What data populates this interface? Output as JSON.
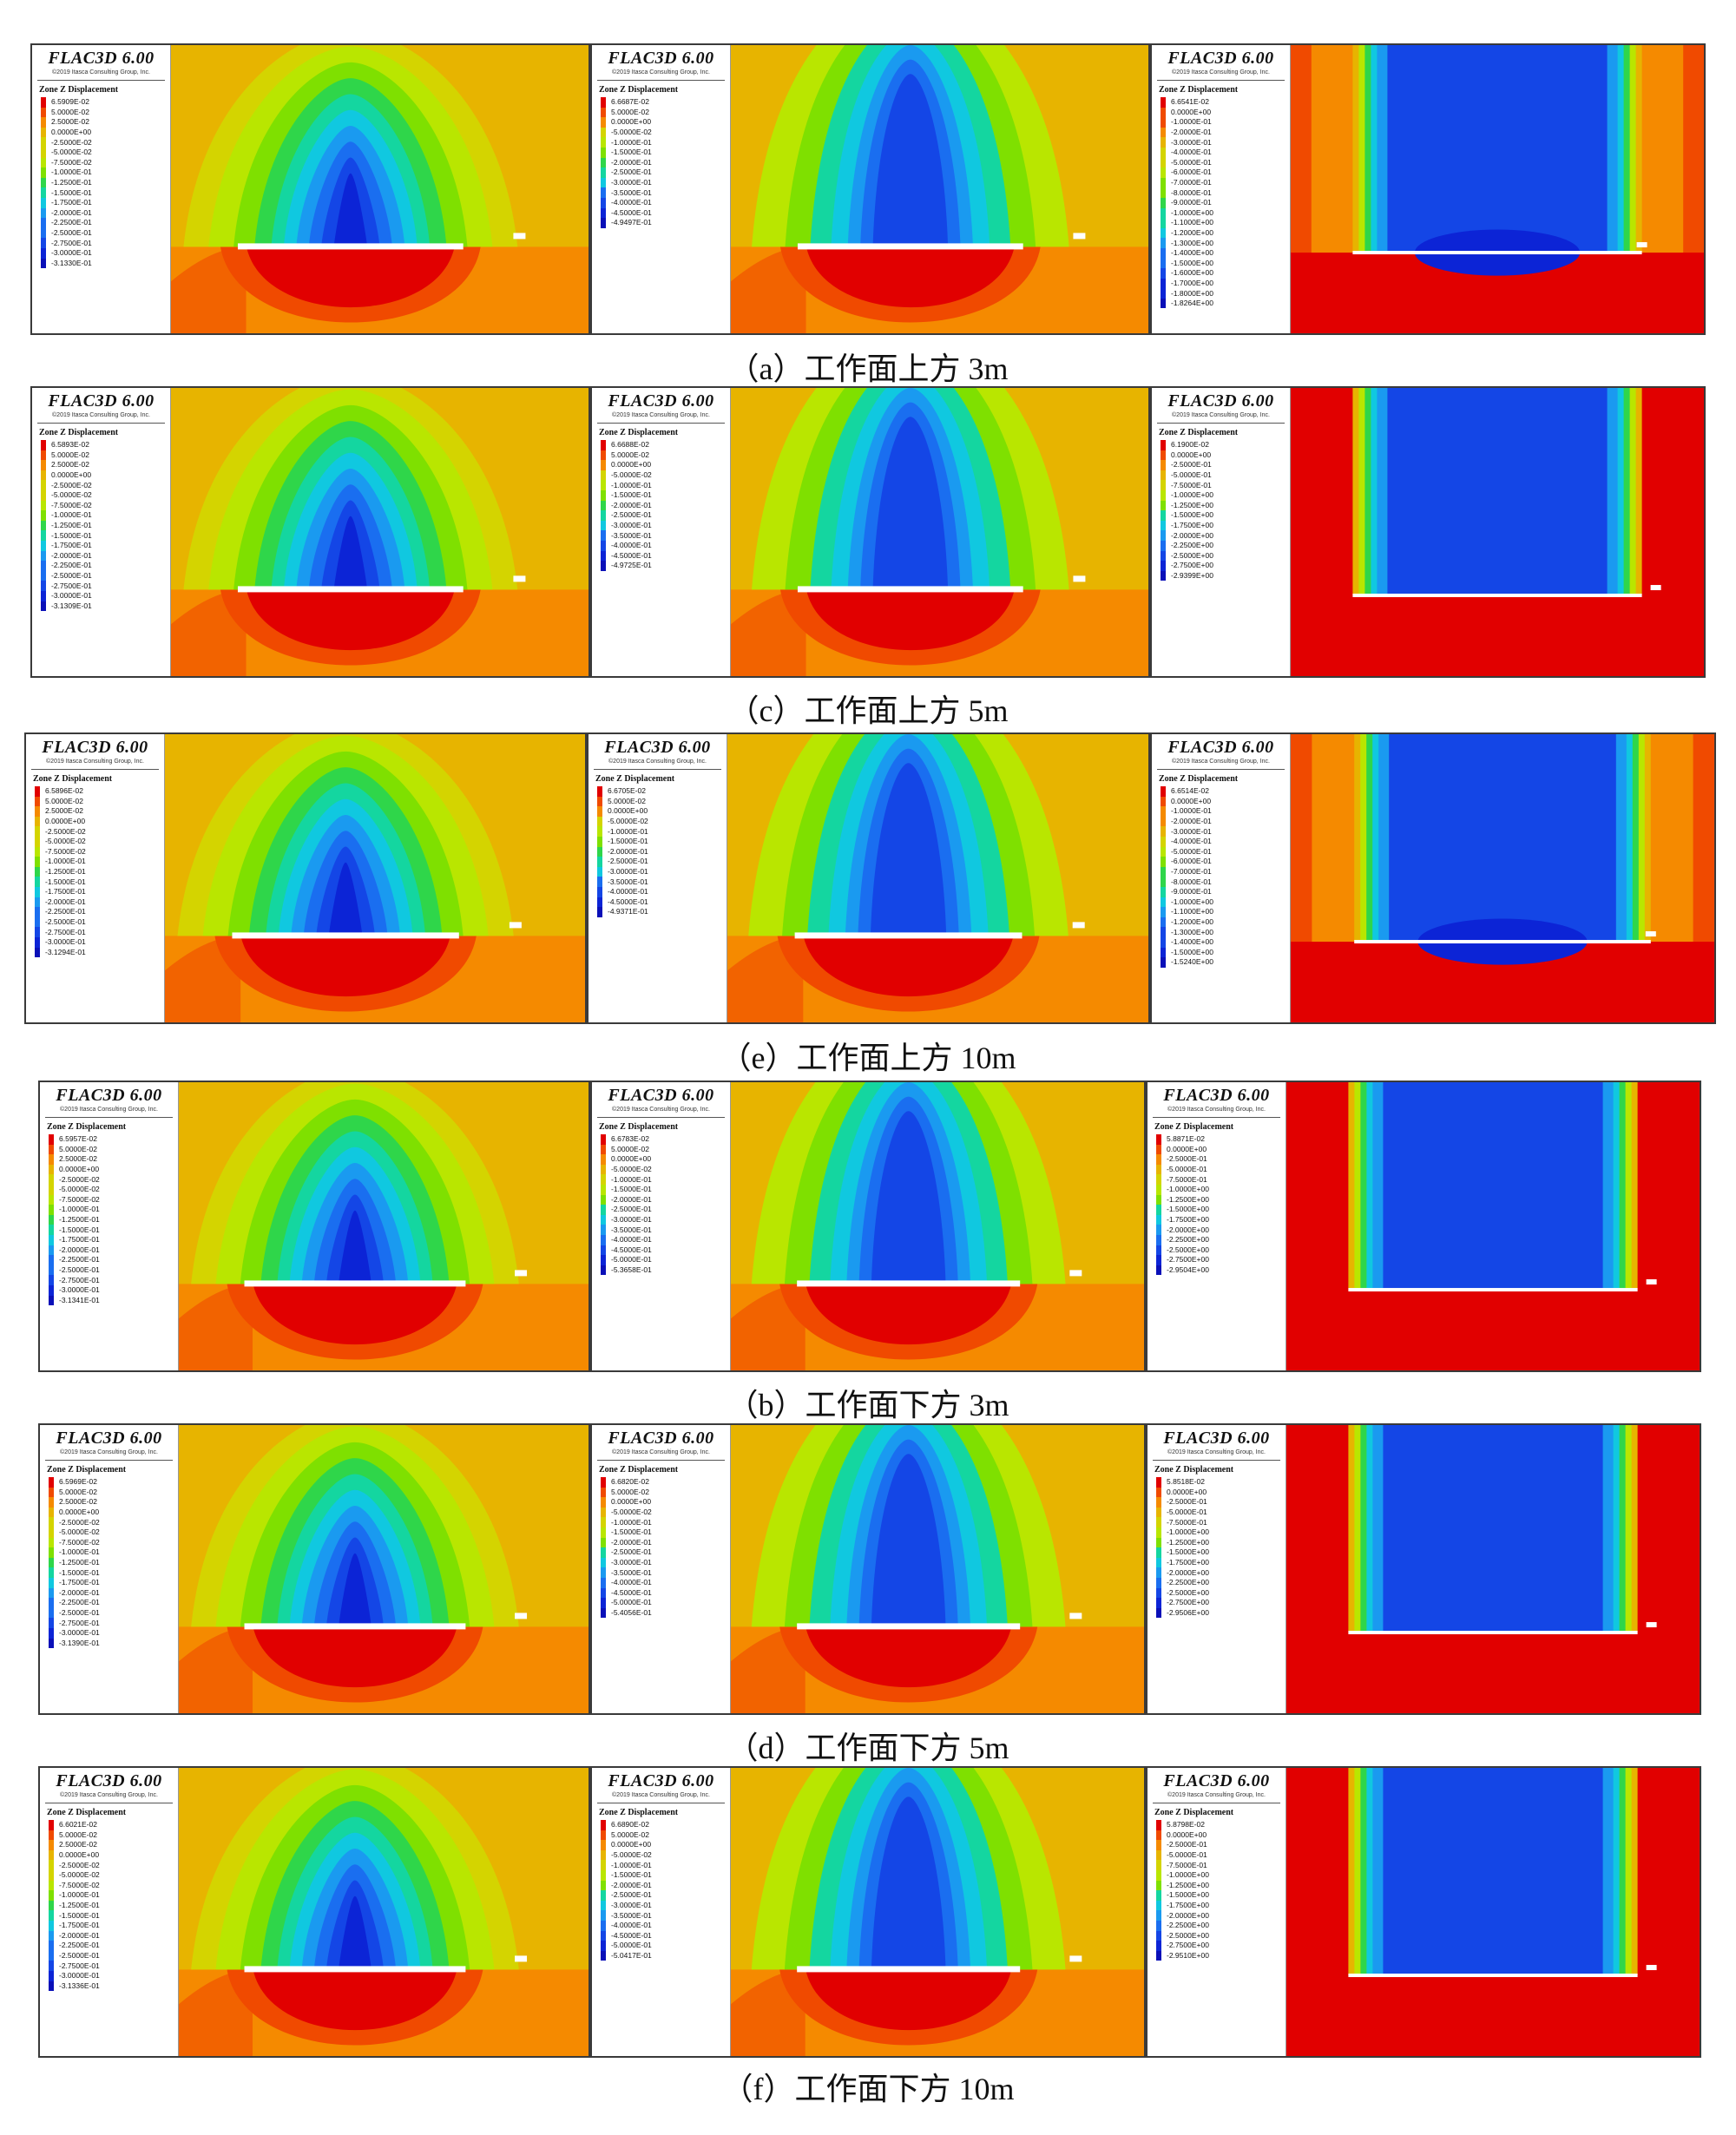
{
  "software": {
    "logo": "FLAC3D 6.00",
    "copyright": "©2019 Itasca Consulting Group, Inc."
  },
  "legend_title": "Zone Z Displacement",
  "rows": [
    {
      "caption": "（a）工作面上方 3m",
      "panels": [
        {
          "pattern": "arch",
          "legend": [
            "6.5909E-02",
            "5.0000E-02",
            "2.5000E-02",
            "0.0000E+00",
            "-2.5000E-02",
            "-5.0000E-02",
            "-7.5000E-02",
            "-1.0000E-01",
            "-1.2500E-01",
            "-1.5000E-01",
            "-1.7500E-01",
            "-2.0000E-01",
            "-2.2500E-01",
            "-2.5000E-01",
            "-2.7500E-01",
            "-3.0000E-01",
            "-3.1330E-01"
          ]
        },
        {
          "pattern": "arch-deep",
          "legend": [
            "6.6687E-02",
            "5.0000E-02",
            "0.0000E+00",
            "-5.0000E-02",
            "-1.0000E-01",
            "-1.5000E-01",
            "-2.0000E-01",
            "-2.5000E-01",
            "-3.0000E-01",
            "-3.5000E-01",
            "-4.0000E-01",
            "-4.5000E-01",
            "-4.9497E-01"
          ]
        },
        {
          "pattern": "column-above",
          "legend": [
            "6.6541E-02",
            "0.0000E+00",
            "-1.0000E-01",
            "-2.0000E-01",
            "-3.0000E-01",
            "-4.0000E-01",
            "-5.0000E-01",
            "-6.0000E-01",
            "-7.0000E-01",
            "-8.0000E-01",
            "-9.0000E-01",
            "-1.0000E+00",
            "-1.1000E+00",
            "-1.2000E+00",
            "-1.3000E+00",
            "-1.4000E+00",
            "-1.5000E+00",
            "-1.6000E+00",
            "-1.7000E+00",
            "-1.8000E+00",
            "-1.8264E+00"
          ]
        }
      ]
    },
    {
      "caption": "（c）工作面上方 5m",
      "panels": [
        {
          "pattern": "arch",
          "legend": [
            "6.5893E-02",
            "5.0000E-02",
            "2.5000E-02",
            "0.0000E+00",
            "-2.5000E-02",
            "-5.0000E-02",
            "-7.5000E-02",
            "-1.0000E-01",
            "-1.2500E-01",
            "-1.5000E-01",
            "-1.7500E-01",
            "-2.0000E-01",
            "-2.2500E-01",
            "-2.5000E-01",
            "-2.7500E-01",
            "-3.0000E-01",
            "-3.1309E-01"
          ]
        },
        {
          "pattern": "arch-deep",
          "legend": [
            "6.6688E-02",
            "5.0000E-02",
            "0.0000E+00",
            "-5.0000E-02",
            "-1.0000E-01",
            "-1.5000E-01",
            "-2.0000E-01",
            "-2.5000E-01",
            "-3.0000E-01",
            "-3.5000E-01",
            "-4.0000E-01",
            "-4.5000E-01",
            "-4.9725E-01"
          ]
        },
        {
          "pattern": "column-red",
          "legend": [
            "6.1900E-02",
            "0.0000E+00",
            "-2.5000E-01",
            "-5.0000E-01",
            "-7.5000E-01",
            "-1.0000E+00",
            "-1.2500E+00",
            "-1.5000E+00",
            "-1.7500E+00",
            "-2.0000E+00",
            "-2.2500E+00",
            "-2.5000E+00",
            "-2.7500E+00",
            "-2.9399E+00"
          ]
        }
      ]
    },
    {
      "caption": "（e）工作面上方 10m",
      "panels": [
        {
          "pattern": "arch",
          "legend": [
            "6.5896E-02",
            "5.0000E-02",
            "2.5000E-02",
            "0.0000E+00",
            "-2.5000E-02",
            "-5.0000E-02",
            "-7.5000E-02",
            "-1.0000E-01",
            "-1.2500E-01",
            "-1.5000E-01",
            "-1.7500E-01",
            "-2.0000E-01",
            "-2.2500E-01",
            "-2.5000E-01",
            "-2.7500E-01",
            "-3.0000E-01",
            "-3.1294E-01"
          ]
        },
        {
          "pattern": "arch-deep",
          "legend": [
            "6.6705E-02",
            "5.0000E-02",
            "0.0000E+00",
            "-5.0000E-02",
            "-1.0000E-01",
            "-1.5000E-01",
            "-2.0000E-01",
            "-2.5000E-01",
            "-3.0000E-01",
            "-3.5000E-01",
            "-4.0000E-01",
            "-4.5000E-01",
            "-4.9371E-01"
          ]
        },
        {
          "pattern": "column-above",
          "legend": [
            "6.6514E-02",
            "0.0000E+00",
            "-1.0000E-01",
            "-2.0000E-01",
            "-3.0000E-01",
            "-4.0000E-01",
            "-5.0000E-01",
            "-6.0000E-01",
            "-7.0000E-01",
            "-8.0000E-01",
            "-9.0000E-01",
            "-1.0000E+00",
            "-1.1000E+00",
            "-1.2000E+00",
            "-1.3000E+00",
            "-1.4000E+00",
            "-1.5000E+00",
            "-1.5240E+00"
          ]
        }
      ]
    },
    {
      "caption": "（b）工作面下方 3m",
      "panels": [
        {
          "pattern": "arch",
          "legend": [
            "6.5957E-02",
            "5.0000E-02",
            "2.5000E-02",
            "0.0000E+00",
            "-2.5000E-02",
            "-5.0000E-02",
            "-7.5000E-02",
            "-1.0000E-01",
            "-1.2500E-01",
            "-1.5000E-01",
            "-1.7500E-01",
            "-2.0000E-01",
            "-2.2500E-01",
            "-2.5000E-01",
            "-2.7500E-01",
            "-3.0000E-01",
            "-3.1341E-01"
          ]
        },
        {
          "pattern": "arch-deep",
          "legend": [
            "6.6783E-02",
            "5.0000E-02",
            "0.0000E+00",
            "-5.0000E-02",
            "-1.0000E-01",
            "-1.5000E-01",
            "-2.0000E-01",
            "-2.5000E-01",
            "-3.0000E-01",
            "-3.5000E-01",
            "-4.0000E-01",
            "-4.5000E-01",
            "-5.0000E-01",
            "-5.3658E-01"
          ]
        },
        {
          "pattern": "column-red",
          "legend": [
            "5.8871E-02",
            "0.0000E+00",
            "-2.5000E-01",
            "-5.0000E-01",
            "-7.5000E-01",
            "-1.0000E+00",
            "-1.2500E+00",
            "-1.5000E+00",
            "-1.7500E+00",
            "-2.0000E+00",
            "-2.2500E+00",
            "-2.5000E+00",
            "-2.7500E+00",
            "-2.9504E+00"
          ]
        }
      ]
    },
    {
      "caption": "（d）工作面下方 5m",
      "panels": [
        {
          "pattern": "arch",
          "legend": [
            "6.5969E-02",
            "5.0000E-02",
            "2.5000E-02",
            "0.0000E+00",
            "-2.5000E-02",
            "-5.0000E-02",
            "-7.5000E-02",
            "-1.0000E-01",
            "-1.2500E-01",
            "-1.5000E-01",
            "-1.7500E-01",
            "-2.0000E-01",
            "-2.2500E-01",
            "-2.5000E-01",
            "-2.7500E-01",
            "-3.0000E-01",
            "-3.1390E-01"
          ]
        },
        {
          "pattern": "arch-deep",
          "legend": [
            "6.6820E-02",
            "5.0000E-02",
            "0.0000E+00",
            "-5.0000E-02",
            "-1.0000E-01",
            "-1.5000E-01",
            "-2.0000E-01",
            "-2.5000E-01",
            "-3.0000E-01",
            "-3.5000E-01",
            "-4.0000E-01",
            "-4.5000E-01",
            "-5.0000E-01",
            "-5.4056E-01"
          ]
        },
        {
          "pattern": "column-red",
          "legend": [
            "5.8518E-02",
            "0.0000E+00",
            "-2.5000E-01",
            "-5.0000E-01",
            "-7.5000E-01",
            "-1.0000E+00",
            "-1.2500E+00",
            "-1.5000E+00",
            "-1.7500E+00",
            "-2.0000E+00",
            "-2.2500E+00",
            "-2.5000E+00",
            "-2.7500E+00",
            "-2.9506E+00"
          ]
        }
      ]
    },
    {
      "caption": "（f）工作面下方 10m",
      "panels": [
        {
          "pattern": "arch",
          "legend": [
            "6.6021E-02",
            "5.0000E-02",
            "2.5000E-02",
            "0.0000E+00",
            "-2.5000E-02",
            "-5.0000E-02",
            "-7.5000E-02",
            "-1.0000E-01",
            "-1.2500E-01",
            "-1.5000E-01",
            "-1.7500E-01",
            "-2.0000E-01",
            "-2.2500E-01",
            "-2.5000E-01",
            "-2.7500E-01",
            "-3.0000E-01",
            "-3.1336E-01"
          ]
        },
        {
          "pattern": "arch-deep",
          "legend": [
            "6.6890E-02",
            "5.0000E-02",
            "0.0000E+00",
            "-5.0000E-02",
            "-1.0000E-01",
            "-1.5000E-01",
            "-2.0000E-01",
            "-2.5000E-01",
            "-3.0000E-01",
            "-3.5000E-01",
            "-4.0000E-01",
            "-4.5000E-01",
            "-5.0000E-01",
            "-5.0417E-01"
          ]
        },
        {
          "pattern": "column-red",
          "legend": [
            "5.8798E-02",
            "0.0000E+00",
            "-2.5000E-01",
            "-5.0000E-01",
            "-7.5000E-01",
            "-1.0000E+00",
            "-1.2500E+00",
            "-1.5000E+00",
            "-1.7500E+00",
            "-2.0000E+00",
            "-2.2500E+00",
            "-2.5000E+00",
            "-2.7500E+00",
            "-2.9510E+00"
          ]
        }
      ]
    }
  ],
  "colors": {
    "scale": [
      "#e10000",
      "#f04a00",
      "#f58a00",
      "#e7b400",
      "#d4d400",
      "#b9e600",
      "#7fe000",
      "#2fd64a",
      "#14d6a0",
      "#10c8e0",
      "#1a9af0",
      "#1a6ef0",
      "#1446e6",
      "#0c24d6",
      "#0a10b8"
    ]
  }
}
